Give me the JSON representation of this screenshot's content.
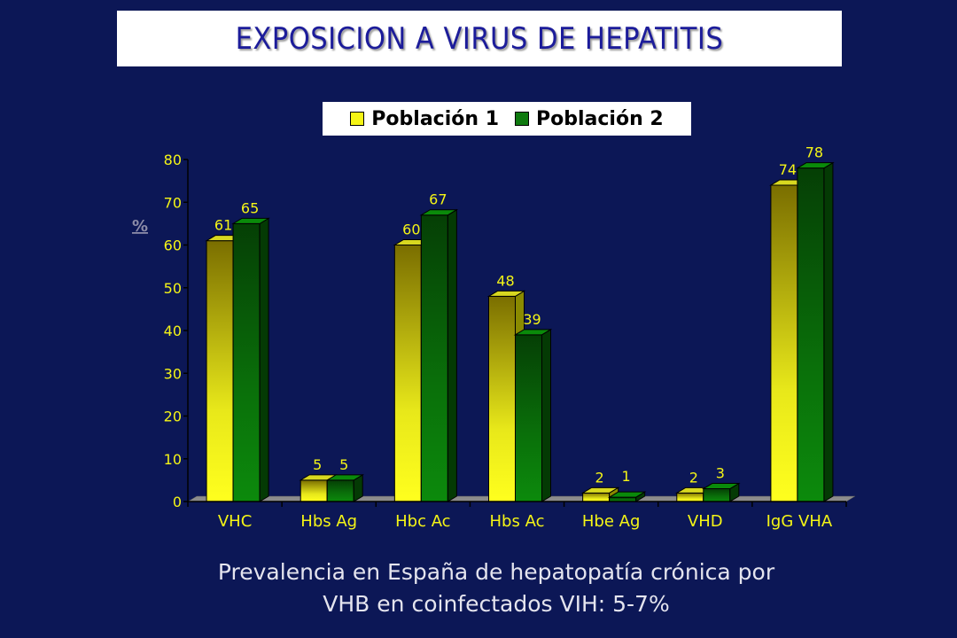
{
  "title": "EXPOSICION A VIRUS DE HEPATITIS",
  "caption": {
    "line1": "Prevalencia  en España de hepatopatía crónica por",
    "line2": "VHB en coinfectados VIH: 5-7%"
  },
  "colors": {
    "background": "#0c1756",
    "series1": "#f5f516",
    "series2": "#0f7a0f",
    "axis_text": "#f5f516"
  },
  "chart_data": {
    "type": "bar",
    "title": "EXPOSICION A VIRUS DE HEPATITIS",
    "ylabel": "%",
    "xlabel": "",
    "ylim": [
      0,
      80
    ],
    "yticks": [
      0,
      10,
      20,
      30,
      40,
      50,
      60,
      70,
      80
    ],
    "categories": [
      "VHC",
      "Hbs Ag",
      "Hbc Ac",
      "Hbs Ac",
      "Hbe Ag",
      "VHD",
      "IgG VHA"
    ],
    "series": [
      {
        "name": "Población 1",
        "values": [
          61,
          5,
          60,
          48,
          2,
          2,
          74
        ]
      },
      {
        "name": "Población 2",
        "values": [
          65,
          5,
          67,
          39,
          1,
          3,
          78
        ]
      }
    ],
    "legend_position": "top",
    "grid": false
  }
}
